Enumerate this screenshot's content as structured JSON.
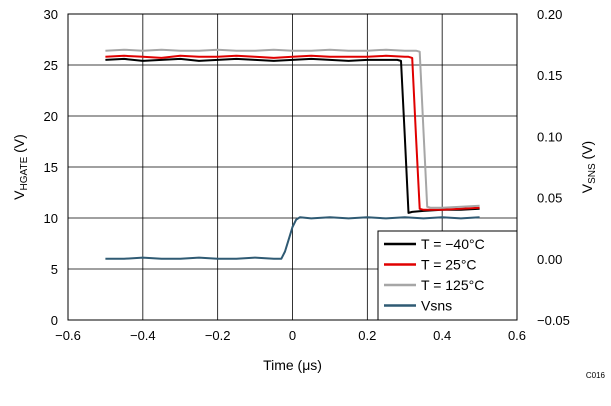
{
  "chart_data": {
    "type": "line",
    "figure_code": "C016",
    "xlabel": "Time (μs)",
    "ylabel_left": {
      "main": "V",
      "sub": "HGATE",
      "unit": " (V)"
    },
    "ylabel_right": {
      "main": "V",
      "sub": "SNS",
      "unit": " (V)"
    },
    "xlim": [
      -0.6,
      0.6
    ],
    "xticks": [
      -0.6,
      -0.4,
      -0.2,
      0,
      0.2,
      0.4,
      0.6
    ],
    "xtick_labels": [
      "−0.6",
      "−0.4",
      "−0.2",
      "0",
      "0.2",
      "0.4",
      "0.6"
    ],
    "ylim_left": [
      0,
      30
    ],
    "yticks_left": [
      0,
      5,
      10,
      15,
      20,
      25,
      30
    ],
    "ytick_labels_left": [
      "0",
      "5",
      "10",
      "15",
      "20",
      "25",
      "30"
    ],
    "ylim_right": [
      -0.05,
      0.2
    ],
    "yticks_right": [
      -0.05,
      0,
      0.05,
      0.1,
      0.15,
      0.2
    ],
    "ytick_labels_right": [
      "−0.05",
      "0.00",
      "0.05",
      "0.10",
      "0.15",
      "0.20"
    ],
    "grid": true,
    "legend_position": "bottom-right",
    "series": [
      {
        "name": "T = −40°C",
        "color": "#000000",
        "axis": "left",
        "x": [
          -0.5,
          -0.45,
          -0.4,
          -0.35,
          -0.3,
          -0.25,
          -0.2,
          -0.15,
          -0.1,
          -0.05,
          0,
          0.05,
          0.1,
          0.15,
          0.2,
          0.25,
          0.28,
          0.29,
          0.3,
          0.31,
          0.32,
          0.35,
          0.4,
          0.45,
          0.5
        ],
        "y": [
          25.5,
          25.6,
          25.4,
          25.5,
          25.6,
          25.4,
          25.5,
          25.6,
          25.5,
          25.4,
          25.5,
          25.6,
          25.5,
          25.4,
          25.5,
          25.5,
          25.5,
          25.4,
          18.0,
          10.5,
          10.6,
          10.7,
          10.8,
          10.8,
          10.9
        ]
      },
      {
        "name": "T = 25°C",
        "color": "#e00000",
        "axis": "left",
        "x": [
          -0.5,
          -0.45,
          -0.4,
          -0.35,
          -0.3,
          -0.25,
          -0.2,
          -0.15,
          -0.1,
          -0.05,
          0,
          0.05,
          0.1,
          0.15,
          0.2,
          0.25,
          0.3,
          0.31,
          0.32,
          0.33,
          0.34,
          0.35,
          0.4,
          0.45,
          0.5
        ],
        "y": [
          25.8,
          25.9,
          25.8,
          25.7,
          25.9,
          25.8,
          25.8,
          25.9,
          25.8,
          25.7,
          25.8,
          25.9,
          25.8,
          25.8,
          25.8,
          25.9,
          25.8,
          25.8,
          25.7,
          18.0,
          10.9,
          10.8,
          10.8,
          10.9,
          11.0
        ]
      },
      {
        "name": "T = 125°C",
        "color": "#a6a6a6",
        "axis": "left",
        "x": [
          -0.5,
          -0.45,
          -0.4,
          -0.35,
          -0.3,
          -0.25,
          -0.2,
          -0.15,
          -0.1,
          -0.05,
          0,
          0.05,
          0.1,
          0.15,
          0.2,
          0.25,
          0.3,
          0.33,
          0.34,
          0.35,
          0.36,
          0.37,
          0.4,
          0.45,
          0.5
        ],
        "y": [
          26.4,
          26.5,
          26.4,
          26.5,
          26.4,
          26.4,
          26.5,
          26.4,
          26.4,
          26.5,
          26.4,
          26.4,
          26.5,
          26.4,
          26.4,
          26.5,
          26.4,
          26.4,
          26.3,
          18.5,
          11.1,
          11.0,
          11.0,
          11.1,
          11.2
        ]
      },
      {
        "name": "Vsns",
        "color": "#2f5a73",
        "axis": "right",
        "x": [
          -0.5,
          -0.45,
          -0.4,
          -0.35,
          -0.3,
          -0.25,
          -0.2,
          -0.15,
          -0.1,
          -0.05,
          -0.03,
          -0.02,
          -0.01,
          0,
          0.01,
          0.02,
          0.05,
          0.1,
          0.15,
          0.2,
          0.25,
          0.3,
          0.35,
          0.4,
          0.45,
          0.5
        ],
        "y": [
          0.0,
          0.0,
          0.001,
          0.0,
          0.0,
          0.001,
          0.0,
          0.0,
          0.001,
          0.0,
          0.0,
          0.006,
          0.016,
          0.026,
          0.032,
          0.034,
          0.033,
          0.034,
          0.033,
          0.034,
          0.033,
          0.034,
          0.033,
          0.034,
          0.033,
          0.034
        ]
      }
    ]
  }
}
